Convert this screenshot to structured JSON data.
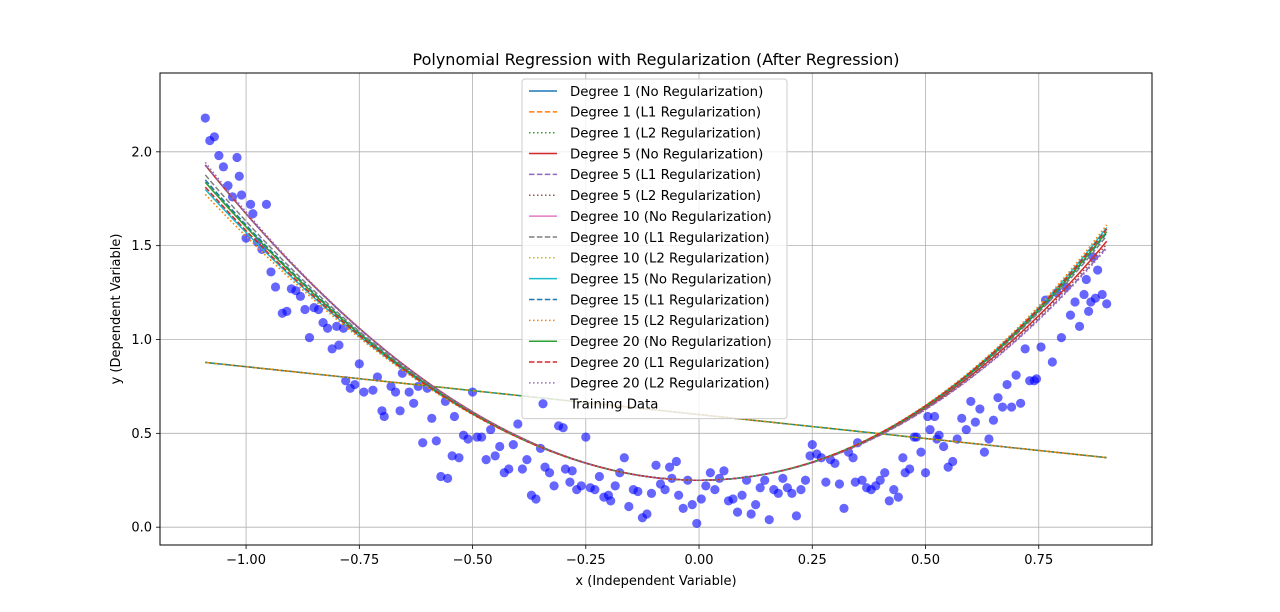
{
  "chart_data": {
    "type": "line",
    "title": "Polynomial Regression with Regularization (After Regression)",
    "xlabel": "x (Independent Variable)",
    "ylabel": "y (Dependent Variable)",
    "xlim": [
      -1.19,
      1.0
    ],
    "ylim": [
      -0.095,
      2.42
    ],
    "xticks": [
      -1.0,
      -0.75,
      -0.5,
      -0.25,
      0.0,
      0.25,
      0.5,
      0.75
    ],
    "xtick_labels": [
      "−1.00",
      "−0.75",
      "−0.50",
      "−0.25",
      "0.00",
      "0.25",
      "0.50",
      "0.75"
    ],
    "yticks": [
      0.0,
      0.5,
      1.0,
      1.5,
      2.0
    ],
    "ytick_labels": [
      "0.0",
      "0.5",
      "1.0",
      "1.5",
      "2.0"
    ],
    "grid": true,
    "legend_position": "top-center",
    "series": [
      {
        "name": "Degree 1 (No Regularization)",
        "color": "#1f77b4",
        "dash": "solid",
        "coef": [
          0.6,
          -0.255
        ]
      },
      {
        "name": "Degree 1 (L1 Regularization)",
        "color": "#ff7f0e",
        "dash": "dashed",
        "coef": [
          0.6,
          -0.255
        ]
      },
      {
        "name": "Degree 1 (L2 Regularization)",
        "color": "#2ca02c",
        "dash": "dotted",
        "coef": [
          0.6,
          -0.255
        ]
      },
      {
        "name": "Degree 5 (No Regularization)",
        "color": "#d62728",
        "dash": "solid",
        "coef": [
          0.25,
          0.0,
          1.5,
          0.08
        ]
      },
      {
        "name": "Degree 5 (L1 Regularization)",
        "color": "#9467bd",
        "dash": "dashed",
        "coef": [
          0.25,
          0.0,
          1.48,
          0.06
        ]
      },
      {
        "name": "Degree 5 (L2 Regularization)",
        "color": "#8c564b",
        "dash": "dotted",
        "coef": [
          0.25,
          0.0,
          1.49,
          0.07
        ]
      },
      {
        "name": "Degree 10 (No Regularization)",
        "color": "#e377c2",
        "dash": "solid",
        "coef": [
          0.25,
          0.0,
          1.5,
          0.15
        ]
      },
      {
        "name": "Degree 10 (L1 Regularization)",
        "color": "#7f7f7f",
        "dash": "dashed",
        "coef": [
          0.25,
          0.0,
          1.5,
          0.12
        ]
      },
      {
        "name": "Degree 10 (L2 Regularization)",
        "color": "#bcbd22",
        "dash": "dotted",
        "coef": [
          0.25,
          0.0,
          1.5,
          0.2
        ]
      },
      {
        "name": "Degree 15 (No Regularization)",
        "color": "#17becf",
        "dash": "solid",
        "coef": [
          0.25,
          0.0,
          1.5,
          0.18
        ]
      },
      {
        "name": "Degree 15 (L1 Regularization)",
        "color": "#1f77b4",
        "dash": "dashed",
        "coef": [
          0.25,
          0.0,
          1.5,
          0.14
        ]
      },
      {
        "name": "Degree 15 (L2 Regularization)",
        "color": "#ff7f0e",
        "dash": "dotted",
        "coef": [
          0.25,
          0.0,
          1.5,
          0.2
        ]
      },
      {
        "name": "Degree 20 (No Regularization)",
        "color": "#2ca02c",
        "dash": "solid",
        "coef": [
          0.25,
          0.0,
          1.5,
          0.15
        ]
      },
      {
        "name": "Degree 20 (L1 Regularization)",
        "color": "#d62728",
        "dash": "dashed",
        "coef": [
          0.25,
          0.0,
          1.5,
          0.17
        ]
      },
      {
        "name": "Degree 20 (L2 Regularization)",
        "color": "#9467bd",
        "dash": "dotted",
        "coef": [
          0.25,
          0.0,
          1.48,
          0.05
        ]
      }
    ],
    "curve_x_range": [
      -1.09,
      0.9
    ],
    "scatter": {
      "name": "Training Data",
      "color": "#0000ff",
      "points": [
        [
          -1.09,
          2.18
        ],
        [
          -1.08,
          2.06
        ],
        [
          -1.07,
          2.08
        ],
        [
          -1.06,
          1.98
        ],
        [
          -1.05,
          1.92
        ],
        [
          -1.04,
          1.82
        ],
        [
          -1.03,
          1.76
        ],
        [
          -1.02,
          1.97
        ],
        [
          -1.015,
          1.87
        ],
        [
          -1.01,
          1.77
        ],
        [
          -1.0,
          1.54
        ],
        [
          -0.99,
          1.72
        ],
        [
          -0.985,
          1.67
        ],
        [
          -0.975,
          1.52
        ],
        [
          -0.965,
          1.48
        ],
        [
          -0.955,
          1.72
        ],
        [
          -0.945,
          1.36
        ],
        [
          -0.935,
          1.28
        ],
        [
          -0.92,
          1.14
        ],
        [
          -0.91,
          1.15
        ],
        [
          -0.9,
          1.27
        ],
        [
          -0.89,
          1.26
        ],
        [
          -0.88,
          1.23
        ],
        [
          -0.87,
          1.16
        ],
        [
          -0.86,
          1.01
        ],
        [
          -0.85,
          1.17
        ],
        [
          -0.84,
          1.16
        ],
        [
          -0.83,
          1.09
        ],
        [
          -0.82,
          1.06
        ],
        [
          -0.81,
          0.95
        ],
        [
          -0.8,
          1.07
        ],
        [
          -0.795,
          0.97
        ],
        [
          -0.785,
          1.06
        ],
        [
          -0.78,
          0.78
        ],
        [
          -0.77,
          0.74
        ],
        [
          -0.76,
          0.76
        ],
        [
          -0.75,
          0.87
        ],
        [
          -0.74,
          0.72
        ],
        [
          -0.72,
          0.73
        ],
        [
          -0.71,
          0.8
        ],
        [
          -0.7,
          0.62
        ],
        [
          -0.695,
          0.59
        ],
        [
          -0.68,
          0.75
        ],
        [
          -0.67,
          0.72
        ],
        [
          -0.66,
          0.62
        ],
        [
          -0.655,
          0.82
        ],
        [
          -0.64,
          0.72
        ],
        [
          -0.63,
          0.66
        ],
        [
          -0.62,
          0.75
        ],
        [
          -0.61,
          0.45
        ],
        [
          -0.6,
          0.74
        ],
        [
          -0.59,
          0.58
        ],
        [
          -0.58,
          0.46
        ],
        [
          -0.57,
          0.27
        ],
        [
          -0.56,
          0.67
        ],
        [
          -0.555,
          0.26
        ],
        [
          -0.545,
          0.38
        ],
        [
          -0.54,
          0.59
        ],
        [
          -0.53,
          0.37
        ],
        [
          -0.52,
          0.49
        ],
        [
          -0.51,
          0.47
        ],
        [
          -0.5,
          0.72
        ],
        [
          -0.49,
          0.48
        ],
        [
          -0.48,
          0.48
        ],
        [
          -0.47,
          0.36
        ],
        [
          -0.46,
          0.52
        ],
        [
          -0.45,
          0.38
        ],
        [
          -0.44,
          0.43
        ],
        [
          -0.43,
          0.29
        ],
        [
          -0.42,
          0.31
        ],
        [
          -0.41,
          0.44
        ],
        [
          -0.4,
          0.55
        ],
        [
          -0.39,
          0.31
        ],
        [
          -0.38,
          0.36
        ],
        [
          -0.37,
          0.17
        ],
        [
          -0.36,
          0.15
        ],
        [
          -0.35,
          0.42
        ],
        [
          -0.34,
          0.32
        ],
        [
          -0.33,
          0.29
        ],
        [
          -0.32,
          0.22
        ],
        [
          -0.31,
          0.54
        ],
        [
          -0.3,
          0.53
        ],
        [
          -0.295,
          0.31
        ],
        [
          -0.285,
          0.24
        ],
        [
          -0.28,
          0.3
        ],
        [
          -0.27,
          0.2
        ],
        [
          -0.26,
          0.22
        ],
        [
          -0.25,
          0.48
        ],
        [
          -0.24,
          0.21
        ],
        [
          -0.23,
          0.2
        ],
        [
          -0.22,
          0.27
        ],
        [
          -0.21,
          0.16
        ],
        [
          -0.2,
          0.17
        ],
        [
          -0.195,
          0.14
        ],
        [
          -0.185,
          0.22
        ],
        [
          -0.175,
          0.29
        ],
        [
          -0.165,
          0.37
        ],
        [
          -0.155,
          0.11
        ],
        [
          -0.145,
          0.2
        ],
        [
          -0.135,
          0.19
        ],
        [
          -0.125,
          0.05
        ],
        [
          -0.115,
          0.07
        ],
        [
          -0.105,
          0.18
        ],
        [
          -0.095,
          0.33
        ],
        [
          -0.085,
          0.23
        ],
        [
          -0.075,
          0.2
        ],
        [
          -0.065,
          0.32
        ],
        [
          -0.06,
          0.26
        ],
        [
          -0.05,
          0.35
        ],
        [
          -0.045,
          0.17
        ],
        [
          -0.035,
          0.1
        ],
        [
          -0.025,
          0.25
        ],
        [
          -0.015,
          0.12
        ],
        [
          -0.005,
          0.02
        ],
        [
          0.005,
          0.15
        ],
        [
          0.015,
          0.22
        ],
        [
          0.025,
          0.29
        ],
        [
          0.035,
          0.2
        ],
        [
          0.045,
          0.26
        ],
        [
          0.055,
          0.3
        ],
        [
          0.065,
          0.14
        ],
        [
          0.075,
          0.15
        ],
        [
          0.085,
          0.08
        ],
        [
          0.095,
          0.17
        ],
        [
          0.105,
          0.25
        ],
        [
          0.115,
          0.07
        ],
        [
          0.125,
          0.12
        ],
        [
          0.135,
          0.21
        ],
        [
          0.145,
          0.25
        ],
        [
          0.155,
          0.04
        ],
        [
          0.165,
          0.2
        ],
        [
          0.175,
          0.18
        ],
        [
          0.185,
          0.26
        ],
        [
          0.195,
          0.21
        ],
        [
          0.205,
          0.18
        ],
        [
          0.215,
          0.06
        ],
        [
          0.225,
          0.2
        ],
        [
          0.235,
          0.25
        ],
        [
          0.245,
          0.38
        ],
        [
          0.25,
          0.44
        ],
        [
          0.26,
          0.39
        ],
        [
          0.27,
          0.37
        ],
        [
          0.28,
          0.24
        ],
        [
          0.29,
          0.36
        ],
        [
          0.3,
          0.34
        ],
        [
          0.31,
          0.23
        ],
        [
          0.32,
          0.1
        ],
        [
          0.33,
          0.4
        ],
        [
          0.34,
          0.37
        ],
        [
          0.345,
          0.24
        ],
        [
          0.35,
          0.45
        ],
        [
          0.36,
          0.25
        ],
        [
          0.37,
          0.21
        ],
        [
          0.38,
          0.2
        ],
        [
          0.39,
          0.22
        ],
        [
          0.4,
          0.25
        ],
        [
          0.41,
          0.29
        ],
        [
          0.42,
          0.14
        ],
        [
          0.43,
          0.2
        ],
        [
          0.44,
          0.16
        ],
        [
          0.45,
          0.37
        ],
        [
          0.455,
          0.29
        ],
        [
          0.465,
          0.31
        ],
        [
          0.475,
          0.48
        ],
        [
          0.48,
          0.48
        ],
        [
          0.49,
          0.4
        ],
        [
          0.5,
          0.29
        ],
        [
          0.505,
          0.59
        ],
        [
          0.51,
          0.52
        ],
        [
          0.52,
          0.59
        ],
        [
          0.525,
          0.47
        ],
        [
          0.53,
          0.49
        ],
        [
          0.54,
          0.43
        ],
        [
          0.55,
          0.32
        ],
        [
          0.56,
          0.35
        ],
        [
          0.57,
          0.47
        ],
        [
          0.58,
          0.58
        ],
        [
          0.59,
          0.52
        ],
        [
          0.6,
          0.67
        ],
        [
          0.61,
          0.56
        ],
        [
          0.62,
          0.63
        ],
        [
          0.63,
          0.4
        ],
        [
          0.64,
          0.47
        ],
        [
          0.65,
          0.57
        ],
        [
          0.66,
          0.69
        ],
        [
          0.67,
          0.64
        ],
        [
          0.68,
          0.76
        ],
        [
          0.69,
          0.64
        ],
        [
          0.7,
          0.81
        ],
        [
          0.71,
          0.66
        ],
        [
          0.72,
          0.95
        ],
        [
          0.73,
          0.78
        ],
        [
          0.74,
          0.78
        ],
        [
          0.745,
          0.79
        ],
        [
          0.755,
          0.96
        ],
        [
          0.765,
          1.21
        ],
        [
          0.78,
          0.88
        ],
        [
          0.79,
          1.25
        ],
        [
          0.8,
          1.01
        ],
        [
          0.81,
          1.28
        ],
        [
          0.82,
          1.13
        ],
        [
          0.83,
          1.2
        ],
        [
          0.84,
          1.07
        ],
        [
          0.85,
          1.24
        ],
        [
          0.855,
          1.32
        ],
        [
          0.86,
          1.15
        ],
        [
          0.865,
          1.2
        ],
        [
          0.87,
          1.44
        ],
        [
          0.875,
          1.22
        ],
        [
          0.88,
          1.37
        ],
        [
          0.89,
          1.24
        ],
        [
          0.9,
          1.19
        ]
      ]
    }
  }
}
